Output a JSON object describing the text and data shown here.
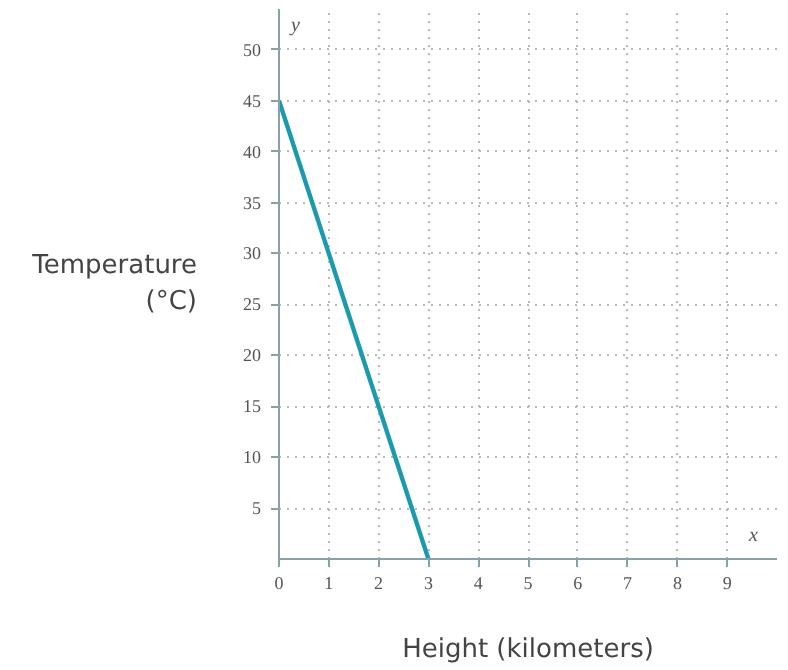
{
  "chart_data": {
    "type": "line",
    "xlabel": "Height (kilometers)",
    "ylabel": "Temperature (°C)",
    "annotations": [
      "y",
      "x"
    ],
    "x": [
      0,
      3
    ],
    "series": [
      {
        "color": "#1a9aae",
        "values": [
          45,
          0
        ]
      }
    ],
    "xlim": [
      0,
      10
    ],
    "ylim": [
      0,
      54
    ],
    "xticks": [
      0,
      1,
      2,
      3,
      4,
      5,
      6,
      7,
      8,
      9
    ],
    "yticks": [
      5,
      10,
      15,
      20,
      25,
      30,
      35,
      40,
      45,
      50
    ],
    "grid": true,
    "marker": "none",
    "line_style": "solid"
  }
}
